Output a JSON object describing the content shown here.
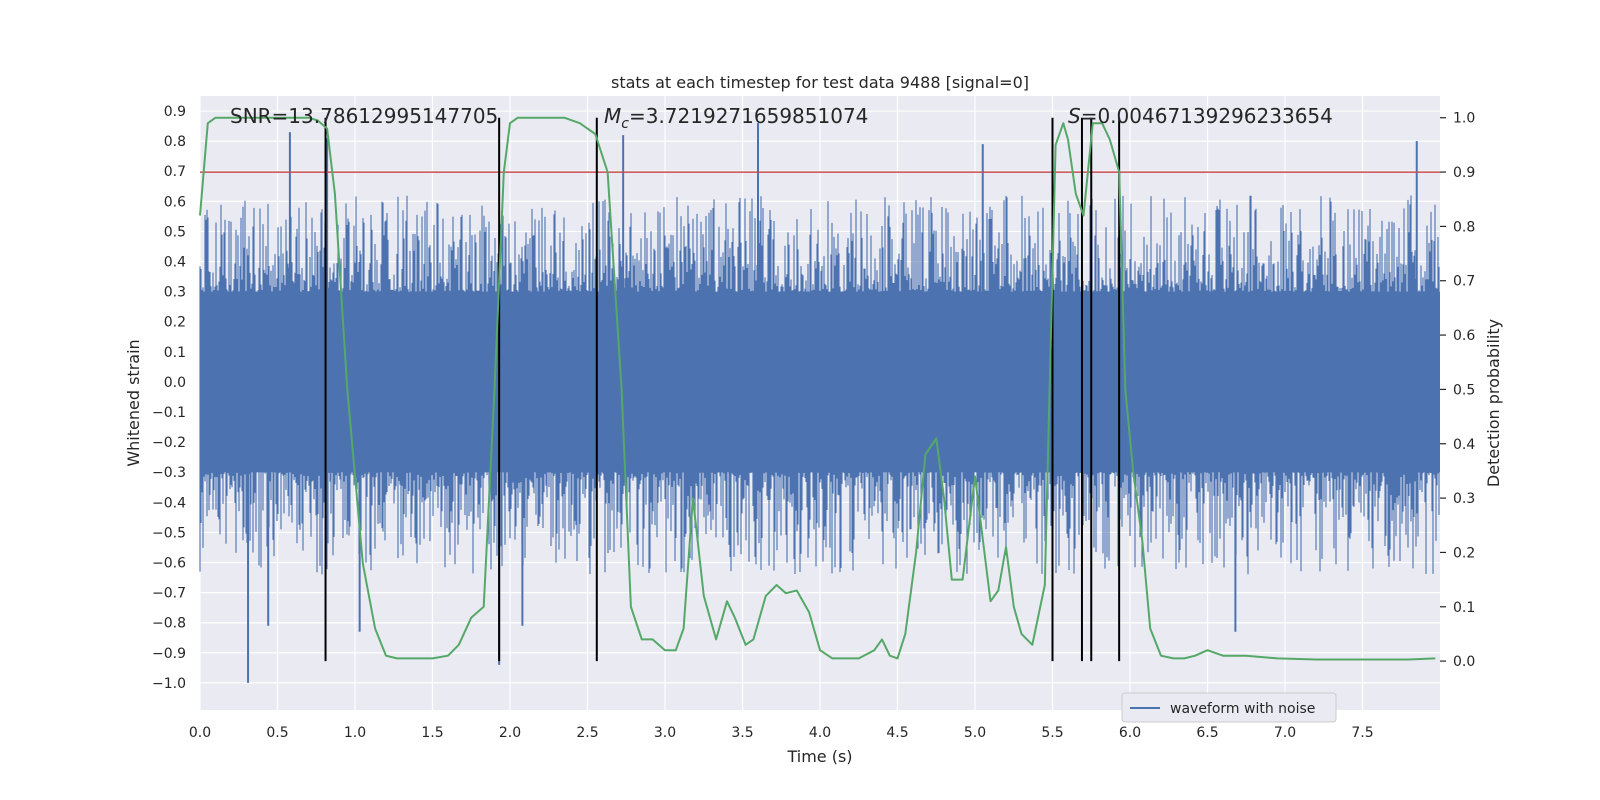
{
  "chart_data": {
    "type": "line",
    "title": "stats at each timestep for test data 9488 [signal=0]",
    "xlabel": "Time (s)",
    "ylabel_left": "Whitened strain",
    "ylabel_right": "Detection probability",
    "xlim": [
      0.0,
      8.0
    ],
    "ylim_left": [
      -1.09,
      0.95
    ],
    "ylim_right": [
      -0.09,
      1.04
    ],
    "x_ticks": [
      "0.0",
      "0.5",
      "1.0",
      "1.5",
      "2.0",
      "2.5",
      "3.0",
      "3.5",
      "4.0",
      "4.5",
      "5.0",
      "5.5",
      "6.0",
      "6.5",
      "7.0",
      "7.5"
    ],
    "y_left_ticks": [
      "0.9",
      "0.8",
      "0.7",
      "0.6",
      "0.5",
      "0.4",
      "0.3",
      "0.2",
      "0.1",
      "0.0",
      "−0.1",
      "−0.2",
      "−0.3",
      "−0.4",
      "−0.5",
      "−0.6",
      "−0.7",
      "−0.8",
      "−0.9",
      "−1.0"
    ],
    "y_right_ticks": [
      "1.0",
      "0.9",
      "0.8",
      "0.7",
      "0.6",
      "0.5",
      "0.4",
      "0.3",
      "0.2",
      "0.1",
      "0.0"
    ],
    "grid": true,
    "legend_position": "lower-right",
    "annotations": {
      "snr": "SNR=13.78612995147705",
      "mc_symbol": "M",
      "mc_sub": "c",
      "mc_value": "=3.7219271659851074",
      "s_symbol": "S",
      "s_value": "=0.00467139296233654"
    },
    "threshold": {
      "axis": "right",
      "value": 0.9,
      "color": "#c44e52"
    },
    "vertical_lines_x": [
      0.81,
      1.93,
      2.56,
      5.5,
      5.69,
      5.75,
      5.93
    ],
    "series": [
      {
        "name": "waveform with noise",
        "axis": "left",
        "color": "#4c72b0",
        "description_stats": {
          "core_amplitude": 0.3,
          "min": -1.0,
          "max": 0.86
        },
        "spikes": [
          {
            "x": 0.31,
            "y": -1.0
          },
          {
            "x": 0.44,
            "y": -0.81
          },
          {
            "x": 0.58,
            "y": 0.83
          },
          {
            "x": 0.82,
            "y": 0.81
          },
          {
            "x": 1.03,
            "y": -0.83
          },
          {
            "x": 1.93,
            "y": -0.94
          },
          {
            "x": 2.08,
            "y": -0.81
          },
          {
            "x": 2.73,
            "y": 0.82
          },
          {
            "x": 3.6,
            "y": 0.86
          },
          {
            "x": 5.05,
            "y": 0.79
          },
          {
            "x": 6.68,
            "y": -0.83
          },
          {
            "x": 7.85,
            "y": 0.8
          }
        ]
      },
      {
        "name": "detection probability",
        "axis": "right",
        "color": "#55a868",
        "x": [
          0.0,
          0.05,
          0.1,
          0.15,
          0.2,
          0.3,
          0.4,
          0.5,
          0.6,
          0.7,
          0.76,
          0.82,
          0.87,
          0.95,
          1.05,
          1.13,
          1.2,
          1.27,
          1.35,
          1.5,
          1.6,
          1.67,
          1.75,
          1.83,
          1.9,
          1.96,
          2.0,
          2.05,
          2.2,
          2.35,
          2.45,
          2.55,
          2.63,
          2.72,
          2.78,
          2.85,
          2.92,
          3.0,
          3.07,
          3.12,
          3.18,
          3.25,
          3.33,
          3.4,
          3.45,
          3.52,
          3.57,
          3.65,
          3.72,
          3.78,
          3.85,
          3.93,
          4.0,
          4.08,
          4.15,
          4.25,
          4.35,
          4.4,
          4.45,
          4.5,
          4.55,
          4.62,
          4.68,
          4.75,
          4.8,
          4.85,
          4.92,
          5.0,
          5.03,
          5.1,
          5.15,
          5.2,
          5.25,
          5.3,
          5.37,
          5.45,
          5.52,
          5.57,
          5.6,
          5.65,
          5.7,
          5.76,
          5.82,
          5.87,
          5.93,
          5.97,
          6.02,
          6.08,
          6.13,
          6.2,
          6.28,
          6.35,
          6.42,
          6.5,
          6.6,
          6.75,
          6.95,
          7.2,
          7.5,
          7.8,
          7.97
        ],
        "y": [
          0.82,
          0.99,
          1.0,
          1.0,
          1.0,
          1.0,
          1.0,
          1.0,
          1.0,
          1.0,
          0.995,
          0.98,
          0.86,
          0.5,
          0.18,
          0.06,
          0.01,
          0.005,
          0.005,
          0.005,
          0.01,
          0.03,
          0.08,
          0.1,
          0.5,
          0.9,
          0.99,
          1.0,
          1.0,
          1.0,
          0.99,
          0.97,
          0.9,
          0.5,
          0.1,
          0.04,
          0.04,
          0.02,
          0.02,
          0.06,
          0.3,
          0.12,
          0.04,
          0.11,
          0.08,
          0.03,
          0.04,
          0.12,
          0.14,
          0.125,
          0.13,
          0.09,
          0.02,
          0.005,
          0.005,
          0.005,
          0.02,
          0.04,
          0.01,
          0.005,
          0.05,
          0.2,
          0.38,
          0.41,
          0.3,
          0.15,
          0.15,
          0.34,
          0.27,
          0.11,
          0.13,
          0.21,
          0.1,
          0.05,
          0.03,
          0.14,
          0.95,
          0.99,
          0.96,
          0.86,
          0.82,
          0.99,
          0.99,
          0.96,
          0.9,
          0.5,
          0.35,
          0.22,
          0.06,
          0.01,
          0.005,
          0.005,
          0.01,
          0.02,
          0.01,
          0.01,
          0.005,
          0.003,
          0.003,
          0.003,
          0.005
        ]
      }
    ]
  },
  "legend": {
    "label": "waveform with noise"
  }
}
